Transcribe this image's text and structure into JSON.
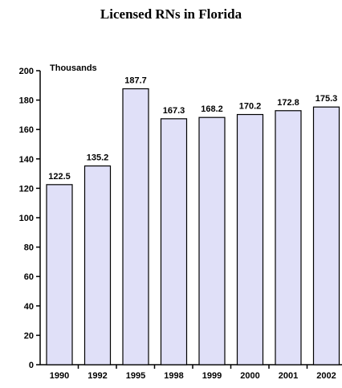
{
  "chart_data": {
    "type": "bar",
    "title": "Licensed RNs in Florida",
    "unit_label": "Thousands",
    "categories": [
      "1990",
      "1992",
      "1995",
      "1998",
      "1999",
      "2000",
      "2001",
      "2002"
    ],
    "values": [
      122.5,
      135.2,
      187.7,
      167.3,
      168.2,
      170.2,
      172.8,
      175.3
    ],
    "ylim": [
      0,
      200
    ],
    "yticks": [
      0,
      20,
      40,
      60,
      80,
      100,
      120,
      140,
      160,
      180,
      200
    ],
    "bar_color": "#e0e0f8",
    "bar_edge_color": "#000000",
    "grid": false,
    "xlabel": "",
    "ylabel": ""
  }
}
